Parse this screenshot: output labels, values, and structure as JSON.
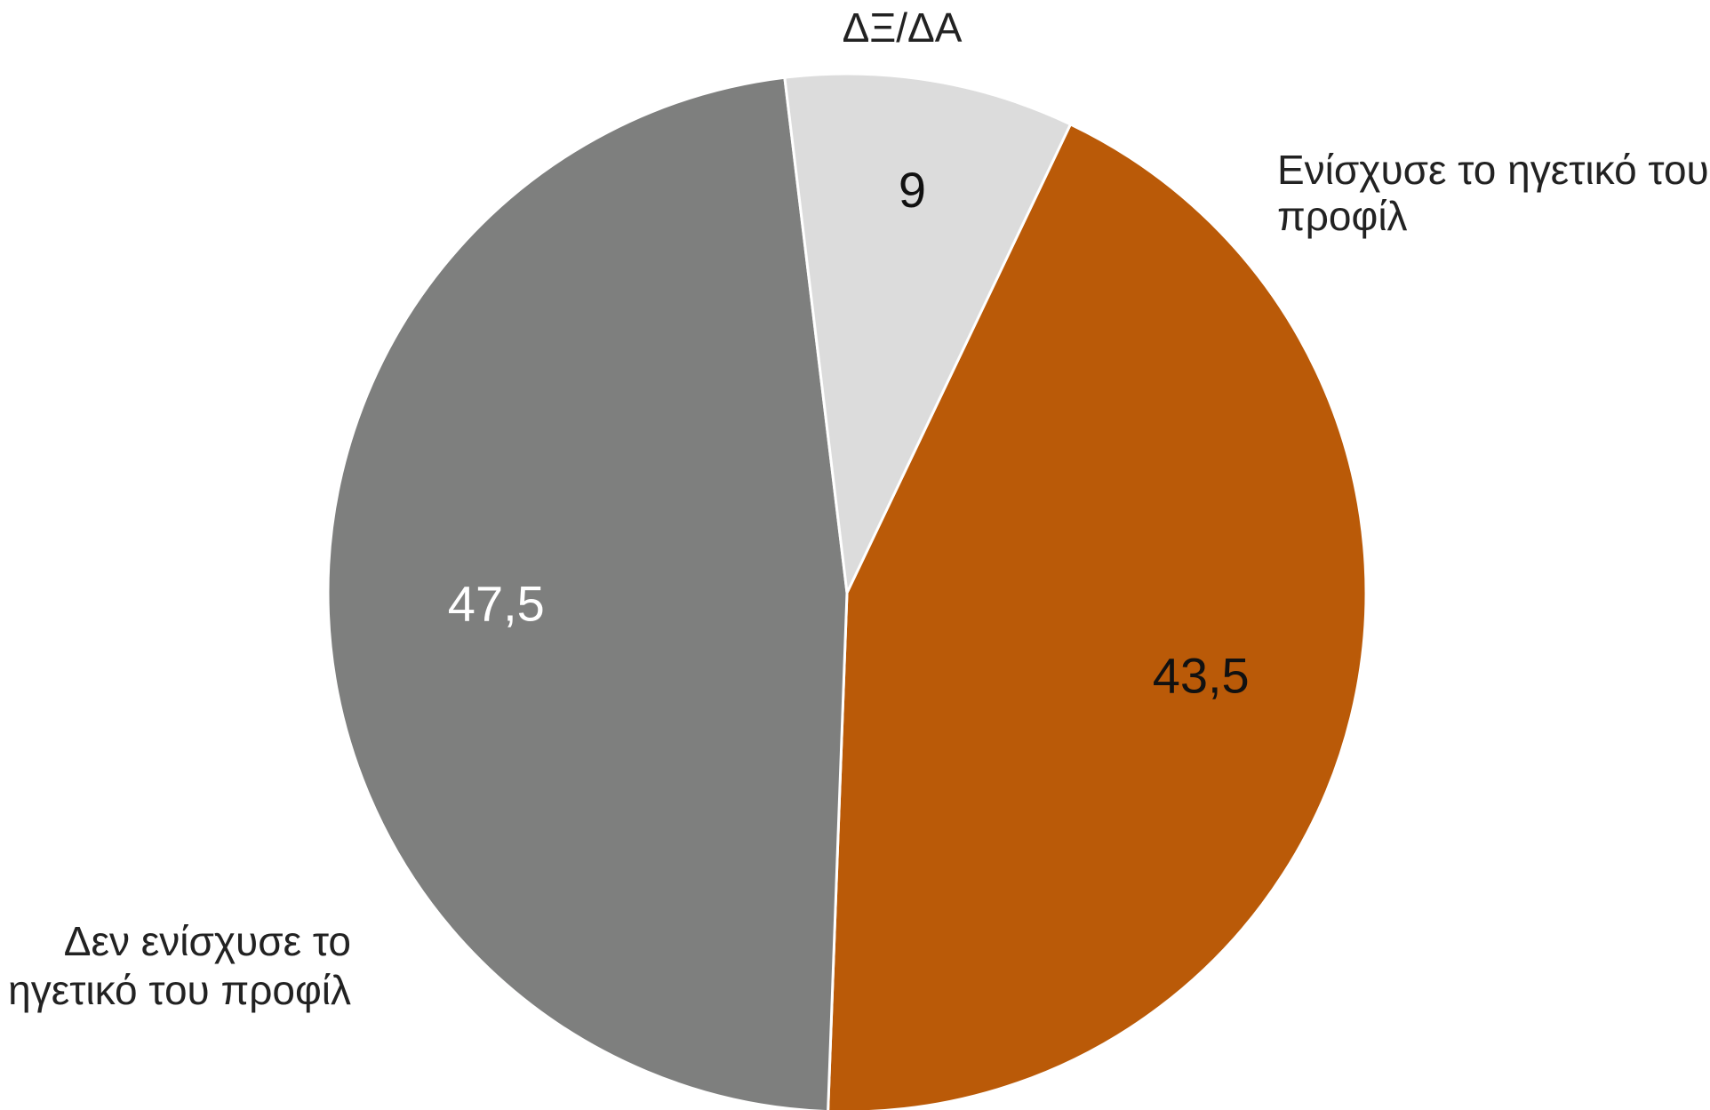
{
  "chart_data": {
    "type": "pie",
    "title": "",
    "slices": [
      {
        "label": "Ενίσχυσε το ηγετικό του προφίλ",
        "label_lines": [
          "Ενίσχυσε το ηγετικό του",
          "προφίλ"
        ],
        "value": 43.5,
        "value_text": "43,5",
        "color": "#BA5A08",
        "value_text_color": "#111111"
      },
      {
        "label": "Δεν ενίσχυσε το ηγετικό του προφίλ",
        "label_lines": [
          "Δεν ενίσχυσε το",
          "ηγετικό του προφίλ"
        ],
        "value": 47.5,
        "value_text": "47,5",
        "color": "#7E7F7E",
        "value_text_color": "#FFFFFF"
      },
      {
        "label": "ΔΞ/ΔΑ",
        "label_lines": [
          "ΔΞ/ΔΑ"
        ],
        "value": 9,
        "value_text": "9",
        "color": "#DCDCDC",
        "value_text_color": "#111111"
      }
    ]
  }
}
